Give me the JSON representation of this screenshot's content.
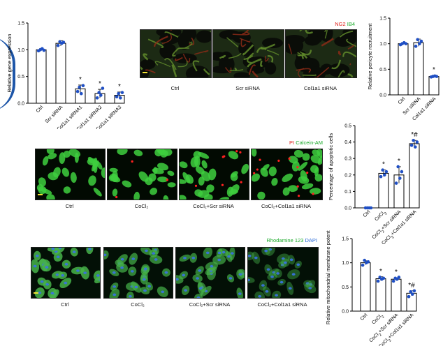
{
  "chart_data": [
    {
      "id": "gene",
      "type": "bar",
      "ylabel": "Relative gene expression",
      "ylim": [
        0,
        1.5
      ],
      "yticks": [
        "0.0",
        "0.5",
        "1.0",
        "1.5"
      ],
      "categories": [
        "Ctrl",
        "Scr siRNA",
        "Col1a1 siRNA1",
        "Col1a1 siRNA2",
        "Col1a1 siRNA3"
      ],
      "values": [
        1.0,
        1.12,
        0.27,
        0.18,
        0.15
      ],
      "errors": [
        0.02,
        0.05,
        0.07,
        0.08,
        0.06
      ],
      "points": [
        [
          0.98,
          1.0,
          1.02,
          0.99
        ],
        [
          1.08,
          1.15,
          1.12,
          1.14
        ],
        [
          0.22,
          0.3,
          0.18,
          0.33
        ],
        [
          0.1,
          0.2,
          0.15,
          0.28
        ],
        [
          0.12,
          0.18,
          0.1,
          0.2
        ]
      ],
      "annotations": [
        "",
        "",
        "*",
        "*",
        "*"
      ]
    },
    {
      "id": "pericyte",
      "type": "bar",
      "ylabel": "Relative pericyte recruitment",
      "ylim": [
        0,
        1.5
      ],
      "yticks": [
        "0.0",
        "0.5",
        "1.0",
        "1.5"
      ],
      "categories": [
        "Ctrl",
        "Scr siRNA",
        "Col1a1 siRNA"
      ],
      "values": [
        1.0,
        1.02,
        0.36
      ],
      "errors": [
        0.02,
        0.07,
        0.02
      ],
      "points": [
        [
          0.98,
          1.0,
          1.02,
          1.0
        ],
        [
          0.95,
          1.08,
          1.0,
          1.05
        ],
        [
          0.35,
          0.36,
          0.37,
          0.36
        ]
      ],
      "annotations": [
        "",
        "",
        "*"
      ]
    },
    {
      "id": "apoptotic",
      "type": "bar",
      "ylabel": "Percentage of apoptotic cells",
      "ylim": [
        0,
        0.5
      ],
      "yticks": [
        "0.0",
        "0.1",
        "0.2",
        "0.3",
        "0.4",
        "0.5"
      ],
      "categories": [
        "Ctrl",
        "CoCl2",
        "CoCl2+Scr siRNA",
        "CoCl2+Col1a1 siRNA"
      ],
      "values": [
        0.0,
        0.21,
        0.2,
        0.39
      ],
      "errors": [
        0.0,
        0.02,
        0.05,
        0.02
      ],
      "points": [
        [
          0,
          0,
          0,
          0
        ],
        [
          0.19,
          0.23,
          0.2,
          0.22
        ],
        [
          0.15,
          0.25,
          0.18,
          0.22
        ],
        [
          0.38,
          0.41,
          0.37,
          0.4
        ]
      ],
      "annotations": [
        "",
        "*",
        "*",
        "*#"
      ]
    },
    {
      "id": "mito",
      "type": "bar",
      "ylabel": "Relative mitochondrial membrane potential",
      "ylim": [
        0,
        1.5
      ],
      "yticks": [
        "0.0",
        "0.5",
        "1.0",
        "1.5"
      ],
      "categories": [
        "Ctrl",
        "CoCl2",
        "CoCl2+Scr siRNA",
        "CoCl2+Col1a1 siRNA"
      ],
      "values": [
        1.0,
        0.67,
        0.66,
        0.37
      ],
      "errors": [
        0.04,
        0.04,
        0.03,
        0.05
      ],
      "points": [
        [
          0.95,
          1.05,
          1.0,
          1.02
        ],
        [
          0.62,
          0.7,
          0.66,
          0.68
        ],
        [
          0.62,
          0.68,
          0.66,
          0.7
        ],
        [
          0.3,
          0.4,
          0.35,
          0.42
        ]
      ],
      "annotations": [
        "",
        "*",
        "*",
        "*#"
      ]
    }
  ],
  "micrographs": {
    "vessel": {
      "legend": {
        "a": "NG2",
        "b": "IB4"
      },
      "captions": [
        "Ctrl",
        "Scr siRNA",
        "Col1a1 siRNA"
      ]
    },
    "calcein": {
      "legend": {
        "a": "PI",
        "b": "Calcein-AM"
      },
      "captions": [
        "Ctrl",
        "CoCl₂",
        "CoCl₂+Scr siRNA",
        "CoCl₂+Col1a1 siRNA"
      ]
    },
    "rhodamine": {
      "legend": {
        "a": "Rhodamine 123",
        "b": "DAPI"
      },
      "captions": [
        "Ctrl",
        "CoCl₂",
        "CoCl₂+Scr siRNA",
        "CoCl₂+Col1a1 siRNA"
      ]
    }
  },
  "colors": {
    "bar_point": "#1f4fc4",
    "red": "#e0201b",
    "green": "#1aaa2a",
    "blue": "#2a6ad8"
  }
}
